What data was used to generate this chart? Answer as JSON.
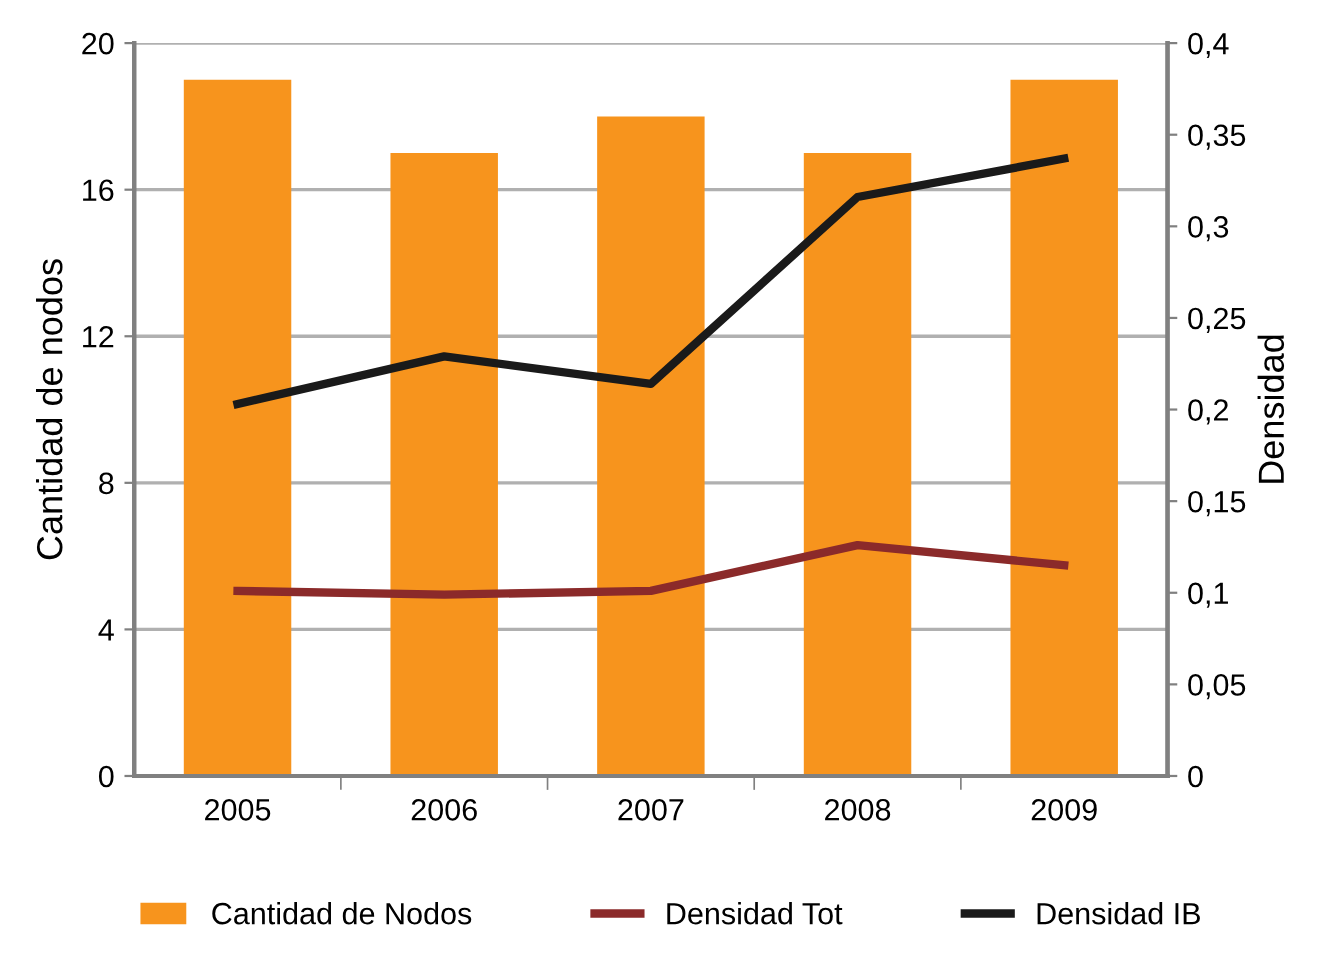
{
  "chart_data": {
    "type": "bar",
    "categories": [
      "2005",
      "2006",
      "2007",
      "2008",
      "2009"
    ],
    "ylabel": "Cantidad de nodos",
    "y2label": "Densidad",
    "series": [
      {
        "name": "Cantidad de Nodos",
        "color": "#f7941d",
        "values": [
          19,
          17,
          18,
          17,
          19
        ]
      },
      {
        "name": "Densidad Tot",
        "type": "line",
        "axis": "y2",
        "color": "#8b2a2a",
        "values": [
          0.101,
          0.099,
          0.101,
          0.126,
          0.115
        ]
      },
      {
        "name": "Densidad IB",
        "type": "line",
        "axis": "y2",
        "color": "#1a1a1a",
        "values": [
          0.203,
          0.229,
          0.214,
          0.316,
          0.337
        ]
      }
    ],
    "ylim": [
      0,
      20
    ],
    "yticks": [
      0,
      4,
      8,
      12,
      16,
      20
    ],
    "y2lim": [
      0,
      0.4
    ],
    "y2ticks": [
      {
        "value": 0,
        "label": "0"
      },
      {
        "value": 0.05,
        "label": "0,05"
      },
      {
        "value": 0.1,
        "label": "0,1"
      },
      {
        "value": 0.15,
        "label": "0,15"
      },
      {
        "value": 0.2,
        "label": "0,2"
      },
      {
        "value": 0.25,
        "label": "0,25"
      },
      {
        "value": 0.3,
        "label": "0,3"
      },
      {
        "value": 0.35,
        "label": "0,35"
      },
      {
        "value": 0.4,
        "label": "0,4"
      }
    ],
    "grid": "y",
    "legend": "bottom",
    "marker": "none",
    "line_style": "solid"
  }
}
